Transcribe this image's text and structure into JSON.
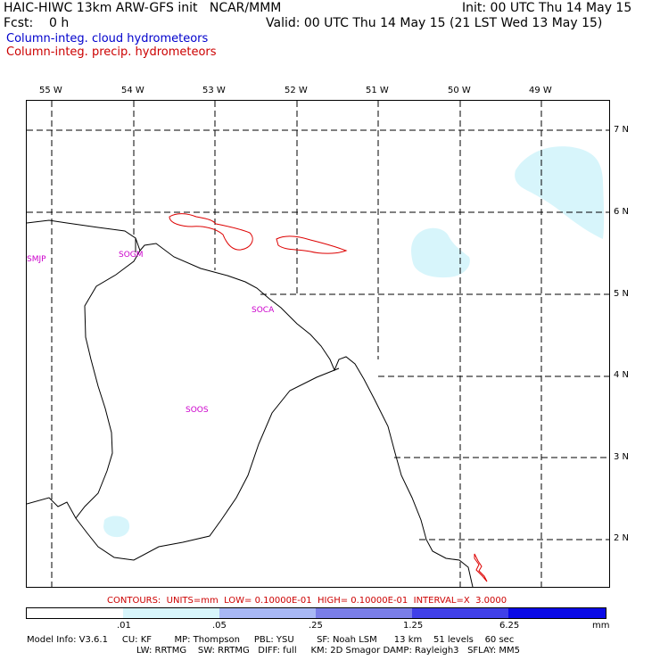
{
  "header": {
    "line1_left": "HAIC-HIWC 13km ARW-GFS init   NCAR/MMM",
    "line1_right": "Init: 00 UTC Thu 14 May 15",
    "line2_left": "Fcst:    0 h",
    "line2_right": "Valid: 00 UTC Thu 14 May 15 (21 LST Wed 13 May 15)",
    "field_blue": "Column-integ. cloud hydrometeors",
    "field_red": "Column-integ. precip. hydrometeors"
  },
  "map": {
    "lon_labels": [
      "55 W",
      "54 W",
      "53 W",
      "52 W",
      "51 W",
      "50 W",
      "49 W"
    ],
    "lat_labels": [
      "7 N",
      "6 N",
      "5 N",
      "4 N",
      "3 N",
      "2 N"
    ],
    "stations": [
      "SMJP",
      "SOGM",
      "SOCA",
      "SOOS"
    ],
    "colors": {
      "cloud_fill": "#d7f5fb",
      "precip_contour": "#dd0000",
      "coastline": "#000000",
      "grid": "#000000"
    }
  },
  "contours_line": "CONTOURS:  UNITS=mm  LOW= 0.10000E-01  HIGH= 0.10000E-01  INTERVAL=X  3.0000",
  "colorbar": {
    "labels": [
      ".01",
      ".05",
      ".25",
      "1.25",
      "6.25",
      "mm"
    ],
    "colors": [
      "#ffffff",
      "#d7f5fb",
      "#a8b8f5",
      "#7a7ee8",
      "#4040e8",
      "#0a0ae6"
    ]
  },
  "model_info": {
    "line1": "Model Info: V3.6.1     CU: KF        MP: Thompson     PBL: YSU        SF: Noah LSM      13 km    51 levels    60 sec",
    "line2": "LW: RRTMG    SW: RRTMG   DIFF: full     KM: 2D Smagor DAMP: Rayleigh3   SFLAY: MM5"
  }
}
